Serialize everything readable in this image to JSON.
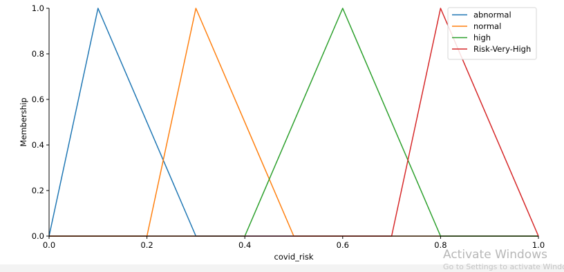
{
  "chart_data": {
    "type": "line",
    "title": "",
    "xlabel": "covid_risk",
    "ylabel": "Membership",
    "xlim": [
      0,
      1
    ],
    "ylim": [
      0,
      1
    ],
    "xticks": [
      "0.0",
      "0.2",
      "0.4",
      "0.6",
      "0.8",
      "1.0"
    ],
    "yticks": [
      "0.0",
      "0.2",
      "0.4",
      "0.6",
      "0.8",
      "1.0"
    ],
    "grid": false,
    "legend": "top-right",
    "series": [
      {
        "name": "abnormal",
        "color": "#1f77b4",
        "x": [
          0.0,
          0.1,
          0.3,
          1.0
        ],
        "y": [
          0,
          1,
          0,
          0
        ]
      },
      {
        "name": "normal",
        "color": "#ff7f0e",
        "x": [
          0.0,
          0.2,
          0.3,
          0.5,
          1.0
        ],
        "y": [
          0,
          0,
          1,
          0,
          0
        ]
      },
      {
        "name": "high",
        "color": "#2ca02c",
        "x": [
          0.0,
          0.4,
          0.6,
          0.8,
          1.0
        ],
        "y": [
          0,
          0,
          1,
          0,
          0
        ]
      },
      {
        "name": "Risk-Very-High",
        "color": "#d62728",
        "x": [
          0.0,
          0.7,
          0.8,
          1.0
        ],
        "y": [
          0,
          0,
          1,
          0
        ]
      }
    ]
  },
  "watermark": {
    "title": "Activate Windows",
    "subtitle": "Go to Settings to activate Windows."
  }
}
